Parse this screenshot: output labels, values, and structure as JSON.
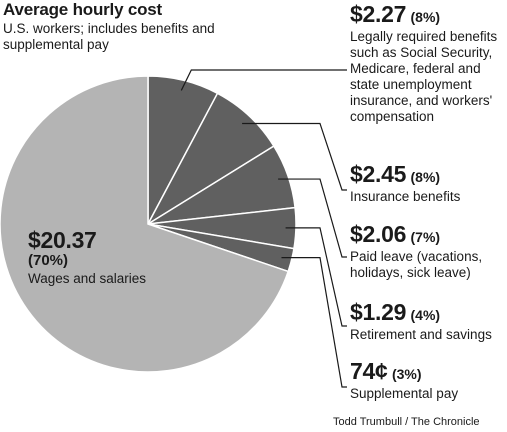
{
  "header": {
    "title": "Average hourly cost",
    "subtitle": "U.S. workers; includes benefits and supplemental pay"
  },
  "credit": "Todd Trumbull / The Chronicle",
  "colors": {
    "main_slice": "#b4b4b4",
    "benefit_slices": "#606060",
    "slice_border": "#ffffff",
    "leader": "#1a1a1a"
  },
  "chart_data": {
    "type": "pie",
    "title": "Average hourly cost",
    "subtitle": "U.S. workers; includes benefits and supplemental pay",
    "slices": [
      {
        "amount": "$2.27",
        "percent": "(8%)",
        "value": 2.27,
        "label": "Legally required benefits such as Social Security, Medicare, federal and state unemployment insurance, and workers' compensation"
      },
      {
        "amount": "$2.45",
        "percent": "(8%)",
        "value": 2.45,
        "label": "Insurance benefits"
      },
      {
        "amount": "$2.06",
        "percent": "(7%)",
        "value": 2.06,
        "label": "Paid leave (vacations, holidays, sick leave)"
      },
      {
        "amount": "$1.29",
        "percent": "(4%)",
        "value": 1.29,
        "label": "Retirement and savings"
      },
      {
        "amount": "74¢",
        "percent": "(3%)",
        "value": 0.74,
        "label": "Supplemental pay"
      },
      {
        "amount": "$20.37",
        "percent": "(70%)",
        "value": 20.37,
        "label": "Wages and salaries"
      }
    ]
  }
}
